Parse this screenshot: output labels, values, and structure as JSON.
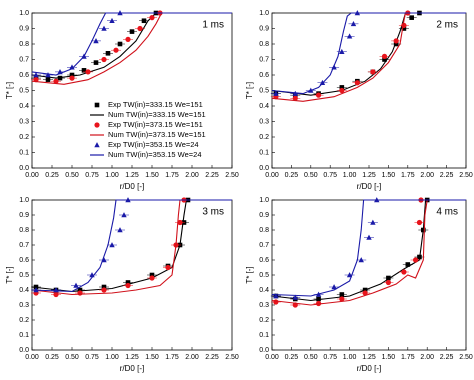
{
  "chart_data": [
    {
      "type": "scatter",
      "title": "1 ms",
      "xlabel": "r/D0 [-]",
      "ylabel": "T* [-]",
      "legend": "lower right",
      "xlim": [
        0,
        2.5
      ],
      "ylim": [
        0,
        1
      ],
      "xticks": [
        {
          "value": 0,
          "label": "0.00"
        },
        {
          "value": 0.25,
          "label": "0.25"
        },
        {
          "value": 0.5,
          "label": "0.50"
        },
        {
          "value": 0.75,
          "label": "0.75"
        },
        {
          "value": 1,
          "label": "1.00"
        },
        {
          "value": 1.25,
          "label": "1.25"
        },
        {
          "value": 1.5,
          "label": "1.50"
        },
        {
          "value": 1.75,
          "label": "1.75"
        },
        {
          "value": 2,
          "label": "2.00"
        },
        {
          "value": 2.25,
          "label": "2.25"
        },
        {
          "value": 2.5,
          "label": "2.50"
        }
      ],
      "yticks": [
        {
          "value": 0,
          "label": "0.0"
        },
        0.1,
        0.2,
        0.3,
        0.4,
        0.5,
        0.6,
        0.7,
        0.8,
        0.9,
        {
          "value": 1,
          "label": "1.0"
        }
      ],
      "series": [
        {
          "name": "Exp TW(in)=333.15 We=151",
          "color": "#000000",
          "kind": "marker",
          "marker": "square",
          "x": [
            0.05,
            0.2,
            0.35,
            0.5,
            0.65,
            0.8,
            0.95,
            1.1,
            1.25,
            1.4,
            1.55
          ],
          "values": [
            0.58,
            0.57,
            0.58,
            0.6,
            0.63,
            0.68,
            0.74,
            0.8,
            0.88,
            0.95,
            1.0
          ]
        },
        {
          "name": "Num TW(in)=333.15 We=151",
          "color": "#000000",
          "kind": "line",
          "x": [
            0,
            0.3,
            0.6,
            0.9,
            1.1,
            1.3,
            1.45,
            1.55,
            2.5
          ],
          "values": [
            0.6,
            0.58,
            0.6,
            0.65,
            0.72,
            0.82,
            0.95,
            1.0,
            1.0
          ]
        },
        {
          "name": "Exp TW(in)=373.15 We=151",
          "color": "#e8141c",
          "kind": "marker",
          "marker": "circle",
          "x": [
            0.05,
            0.3,
            0.5,
            0.7,
            0.9,
            1.05,
            1.2,
            1.35,
            1.5,
            1.6
          ],
          "values": [
            0.57,
            0.56,
            0.58,
            0.62,
            0.7,
            0.76,
            0.83,
            0.9,
            0.97,
            1.0
          ]
        },
        {
          "name": "Num TW(in)=373.15 We=151",
          "color": "#d0101a",
          "kind": "line",
          "x": [
            0,
            0.4,
            0.7,
            0.9,
            1.1,
            1.3,
            1.45,
            1.55,
            1.62,
            2.5
          ],
          "values": [
            0.56,
            0.54,
            0.57,
            0.62,
            0.68,
            0.76,
            0.85,
            0.93,
            1.0,
            1.0
          ]
        },
        {
          "name": "Exp TW(in)=353.15 We=24",
          "color": "#1a1aa8",
          "kind": "marker",
          "marker": "triangle",
          "x": [
            0.05,
            0.2,
            0.35,
            0.5,
            0.65,
            0.8,
            0.9,
            1.0,
            1.1
          ],
          "values": [
            0.6,
            0.6,
            0.62,
            0.65,
            0.72,
            0.82,
            0.9,
            0.95,
            1.0
          ]
        },
        {
          "name": "Num TW(in)=353.15 We=24",
          "color": "#1a1aa8",
          "kind": "line",
          "x": [
            0,
            0.3,
            0.5,
            0.65,
            0.75,
            0.85,
            0.92,
            2.5
          ],
          "values": [
            0.62,
            0.6,
            0.64,
            0.72,
            0.82,
            0.93,
            1.0,
            1.0
          ]
        }
      ]
    },
    {
      "type": "scatter",
      "title": "2 ms",
      "xlabel": "r/D0 [-]",
      "ylabel": "T* [-]",
      "xlim": [
        0,
        2.5
      ],
      "ylim": [
        0,
        1
      ],
      "xticks": [
        {
          "value": 0,
          "label": "0.00"
        },
        {
          "value": 0.25,
          "label": "0.25"
        },
        {
          "value": 0.5,
          "label": "0.50"
        },
        {
          "value": 0.75,
          "label": "0.75"
        },
        {
          "value": 1,
          "label": "1.00"
        },
        {
          "value": 1.25,
          "label": "1.25"
        },
        {
          "value": 1.5,
          "label": "1.50"
        },
        {
          "value": 1.75,
          "label": "1.75"
        },
        {
          "value": 2,
          "label": "2.00"
        },
        {
          "value": 2.25,
          "label": "2.25"
        },
        {
          "value": 2.5,
          "label": "2.50"
        }
      ],
      "yticks": [
        {
          "value": 0,
          "label": "0.0"
        },
        0.1,
        0.2,
        0.3,
        0.4,
        0.5,
        0.6,
        0.7,
        0.8,
        0.9,
        {
          "value": 1,
          "label": "1.0"
        }
      ],
      "series": [
        {
          "color": "#000000",
          "kind": "marker",
          "marker": "square",
          "x": [
            0.05,
            0.3,
            0.6,
            0.9,
            1.1,
            1.3,
            1.45,
            1.6,
            1.7,
            1.8,
            1.9
          ],
          "values": [
            0.48,
            0.47,
            0.48,
            0.52,
            0.56,
            0.62,
            0.7,
            0.8,
            0.9,
            0.97,
            1.0
          ]
        },
        {
          "color": "#000000",
          "kind": "line",
          "x": [
            0,
            0.5,
            0.9,
            1.2,
            1.4,
            1.55,
            1.65,
            1.72,
            2.5
          ],
          "values": [
            0.5,
            0.47,
            0.5,
            0.56,
            0.64,
            0.75,
            0.88,
            1.0,
            1.0
          ]
        },
        {
          "color": "#e8141c",
          "kind": "marker",
          "marker": "circle",
          "x": [
            0.05,
            0.3,
            0.6,
            0.9,
            1.1,
            1.3,
            1.45,
            1.6,
            1.7,
            1.75
          ],
          "values": [
            0.46,
            0.45,
            0.47,
            0.5,
            0.55,
            0.62,
            0.72,
            0.82,
            0.92,
            1.0
          ]
        },
        {
          "color": "#d0101a",
          "kind": "line",
          "x": [
            0,
            0.4,
            0.8,
            1.1,
            1.3,
            1.5,
            1.65,
            1.7,
            1.72,
            2.5
          ],
          "values": [
            0.45,
            0.43,
            0.46,
            0.52,
            0.58,
            0.68,
            0.8,
            0.95,
            1.0,
            1.0
          ]
        },
        {
          "color": "#1a1aa8",
          "kind": "marker",
          "marker": "triangle",
          "x": [
            0.05,
            0.3,
            0.5,
            0.65,
            0.8,
            0.9,
            1.0,
            1.05,
            1.1
          ],
          "values": [
            0.48,
            0.48,
            0.5,
            0.55,
            0.65,
            0.75,
            0.85,
            0.93,
            1.0
          ]
        },
        {
          "color": "#1a1aa8",
          "kind": "line",
          "x": [
            0,
            0.4,
            0.6,
            0.75,
            0.85,
            0.92,
            0.97,
            1.02,
            2.5
          ],
          "values": [
            0.5,
            0.48,
            0.52,
            0.6,
            0.72,
            0.88,
            0.98,
            1.0,
            1.0
          ]
        }
      ]
    },
    {
      "type": "scatter",
      "title": "3 ms",
      "xlabel": "r/D0 [-]",
      "ylabel": "T* [-]",
      "xlim": [
        0,
        2.5
      ],
      "ylim": [
        0,
        1
      ],
      "xticks": [
        {
          "value": 0,
          "label": "0.00"
        },
        {
          "value": 0.25,
          "label": "0.25"
        },
        {
          "value": 0.5,
          "label": "0.50"
        },
        {
          "value": 0.75,
          "label": "0.75"
        },
        {
          "value": 1,
          "label": "1.00"
        },
        {
          "value": 1.25,
          "label": "1.25"
        },
        {
          "value": 1.5,
          "label": "1.50"
        },
        {
          "value": 1.75,
          "label": "1.75"
        },
        {
          "value": 2,
          "label": "2.00"
        },
        {
          "value": 2.25,
          "label": "2.25"
        },
        {
          "value": 2.5,
          "label": "2.50"
        }
      ],
      "yticks": [
        {
          "value": 0,
          "label": "0.0"
        },
        0.1,
        0.2,
        0.3,
        0.4,
        0.5,
        0.6,
        0.7,
        0.8,
        0.9,
        {
          "value": 1,
          "label": "1.0"
        }
      ],
      "series": [
        {
          "color": "#000000",
          "kind": "marker",
          "marker": "square",
          "x": [
            0.05,
            0.3,
            0.6,
            0.9,
            1.2,
            1.5,
            1.7,
            1.85,
            1.9,
            1.95
          ],
          "values": [
            0.42,
            0.4,
            0.4,
            0.42,
            0.45,
            0.5,
            0.56,
            0.7,
            0.85,
            1.0
          ]
        },
        {
          "color": "#000000",
          "kind": "line",
          "x": [
            0,
            0.5,
            1.0,
            1.5,
            1.75,
            1.85,
            1.9,
            1.93,
            2.5
          ],
          "values": [
            0.42,
            0.39,
            0.41,
            0.48,
            0.55,
            0.7,
            0.9,
            1.0,
            1.0
          ]
        },
        {
          "color": "#e8141c",
          "kind": "marker",
          "marker": "circle",
          "x": [
            0.05,
            0.3,
            0.6,
            0.9,
            1.2,
            1.5,
            1.7,
            1.8,
            1.85,
            1.9
          ],
          "values": [
            0.38,
            0.37,
            0.38,
            0.4,
            0.43,
            0.48,
            0.55,
            0.7,
            0.85,
            1.0
          ]
        },
        {
          "color": "#d0101a",
          "kind": "line",
          "x": [
            0,
            0.5,
            1.0,
            1.3,
            1.6,
            1.75,
            1.8,
            1.83,
            1.85,
            2.5
          ],
          "values": [
            0.4,
            0.37,
            0.38,
            0.4,
            0.43,
            0.5,
            0.7,
            0.9,
            1.0,
            1.0
          ]
        },
        {
          "color": "#1a1aa8",
          "kind": "marker",
          "marker": "triangle",
          "x": [
            0.05,
            0.3,
            0.55,
            0.75,
            0.9,
            1.0,
            1.1,
            1.15,
            1.2
          ],
          "values": [
            0.4,
            0.4,
            0.43,
            0.5,
            0.6,
            0.7,
            0.8,
            0.9,
            1.0
          ]
        },
        {
          "color": "#1a1aa8",
          "kind": "line",
          "x": [
            0,
            0.5,
            0.7,
            0.85,
            0.95,
            1.02,
            1.05,
            2.5
          ],
          "values": [
            0.4,
            0.39,
            0.45,
            0.55,
            0.7,
            0.88,
            1.0,
            1.0
          ]
        }
      ]
    },
    {
      "type": "scatter",
      "title": "4 ms",
      "xlabel": "r/D0 [-]",
      "ylabel": "T* [-]",
      "xlim": [
        0,
        2.5
      ],
      "ylim": [
        0,
        1
      ],
      "xticks": [
        {
          "value": 0,
          "label": "0.00"
        },
        {
          "value": 0.25,
          "label": "0.25"
        },
        {
          "value": 0.5,
          "label": "0.50"
        },
        {
          "value": 0.75,
          "label": "0.75"
        },
        {
          "value": 1,
          "label": "1.00"
        },
        {
          "value": 1.25,
          "label": "1.25"
        },
        {
          "value": 1.5,
          "label": "1.50"
        },
        {
          "value": 1.75,
          "label": "1.75"
        },
        {
          "value": 2,
          "label": "2.00"
        },
        {
          "value": 2.25,
          "label": "2.25"
        },
        {
          "value": 2.5,
          "label": "2.50"
        }
      ],
      "yticks": [
        {
          "value": 0,
          "label": "0.0"
        },
        0.1,
        0.2,
        0.3,
        0.4,
        0.5,
        0.6,
        0.7,
        0.8,
        0.9,
        {
          "value": 1,
          "label": "1.0"
        }
      ],
      "series": [
        {
          "color": "#000000",
          "kind": "marker",
          "marker": "square",
          "x": [
            0.05,
            0.3,
            0.6,
            0.9,
            1.2,
            1.5,
            1.75,
            1.9,
            1.95,
            2.0
          ],
          "values": [
            0.36,
            0.34,
            0.34,
            0.37,
            0.4,
            0.48,
            0.57,
            0.62,
            0.8,
            1.0
          ]
        },
        {
          "color": "#000000",
          "kind": "line",
          "x": [
            0,
            0.5,
            1.0,
            1.4,
            1.7,
            1.9,
            1.95,
            1.98,
            2.5
          ],
          "values": [
            0.36,
            0.33,
            0.36,
            0.44,
            0.54,
            0.6,
            0.8,
            1.0,
            1.0
          ]
        },
        {
          "color": "#e8141c",
          "kind": "marker",
          "marker": "circle",
          "x": [
            0.05,
            0.3,
            0.6,
            0.9,
            1.2,
            1.5,
            1.7,
            1.85,
            1.9,
            1.92
          ],
          "values": [
            0.32,
            0.3,
            0.31,
            0.34,
            0.38,
            0.45,
            0.52,
            0.6,
            0.85,
            1.0
          ]
        },
        {
          "color": "#d0101a",
          "kind": "line",
          "x": [
            0,
            0.5,
            1.0,
            1.3,
            1.6,
            1.75,
            1.85,
            1.95,
            1.97,
            2.0,
            2.5
          ],
          "values": [
            0.33,
            0.3,
            0.33,
            0.38,
            0.44,
            0.5,
            0.48,
            0.6,
            0.9,
            1.0,
            1.0
          ]
        },
        {
          "color": "#1a1aa8",
          "kind": "marker",
          "marker": "triangle",
          "x": [
            0.05,
            0.3,
            0.6,
            0.8,
            1.0,
            1.15,
            1.25,
            1.3,
            1.35
          ],
          "values": [
            0.36,
            0.35,
            0.37,
            0.42,
            0.5,
            0.6,
            0.75,
            0.85,
            1.0
          ]
        },
        {
          "color": "#1a1aa8",
          "kind": "line",
          "x": [
            0,
            0.5,
            0.8,
            1.0,
            1.1,
            1.15,
            1.18,
            2.5
          ],
          "values": [
            0.37,
            0.36,
            0.4,
            0.46,
            0.6,
            0.8,
            1.0,
            1.0
          ]
        }
      ]
    }
  ]
}
